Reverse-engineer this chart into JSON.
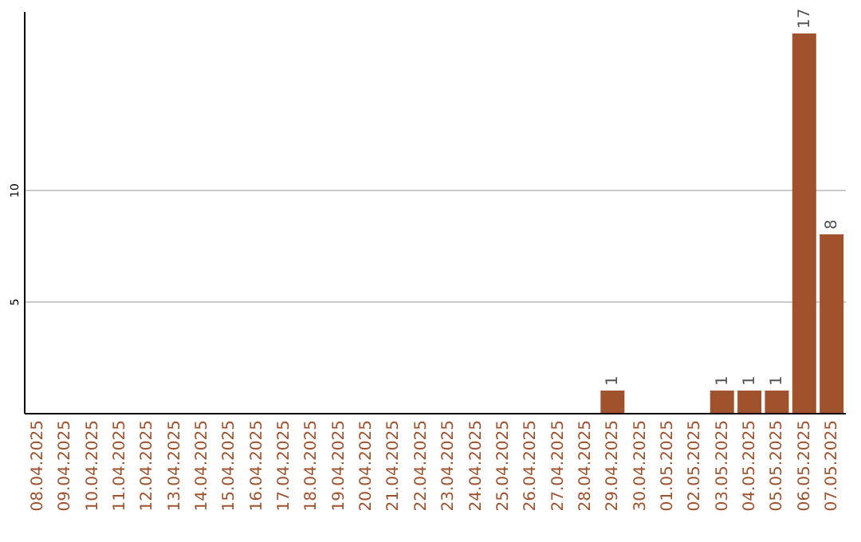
{
  "chart_data": {
    "type": "bar",
    "categories": [
      "08.04.2025",
      "09.04.2025",
      "10.04.2025",
      "11.04.2025",
      "12.04.2025",
      "13.04.2025",
      "14.04.2025",
      "15.04.2025",
      "16.04.2025",
      "17.04.2025",
      "18.04.2025",
      "19.04.2025",
      "20.04.2025",
      "21.04.2025",
      "22.04.2025",
      "23.04.2025",
      "24.04.2025",
      "25.04.2025",
      "26.04.2025",
      "27.04.2025",
      "28.04.2025",
      "29.04.2025",
      "30.04.2025",
      "01.05.2025",
      "02.05.2025",
      "03.05.2025",
      "04.05.2025",
      "05.05.2025",
      "06.05.2025",
      "07.05.2025"
    ],
    "values": [
      0,
      0,
      0,
      0,
      0,
      0,
      0,
      0,
      0,
      0,
      0,
      0,
      0,
      0,
      0,
      0,
      0,
      0,
      0,
      0,
      0,
      1,
      0,
      0,
      0,
      1,
      1,
      1,
      17,
      8
    ],
    "value_labels": [
      null,
      null,
      null,
      null,
      null,
      null,
      null,
      null,
      null,
      null,
      null,
      null,
      null,
      null,
      null,
      null,
      null,
      null,
      null,
      null,
      null,
      "1",
      null,
      null,
      null,
      "1",
      "1",
      "1",
      "17",
      "8"
    ],
    "color": "#a0522d",
    "ylim": [
      0,
      18
    ],
    "yticks": [
      5,
      10
    ],
    "grid": "y"
  }
}
